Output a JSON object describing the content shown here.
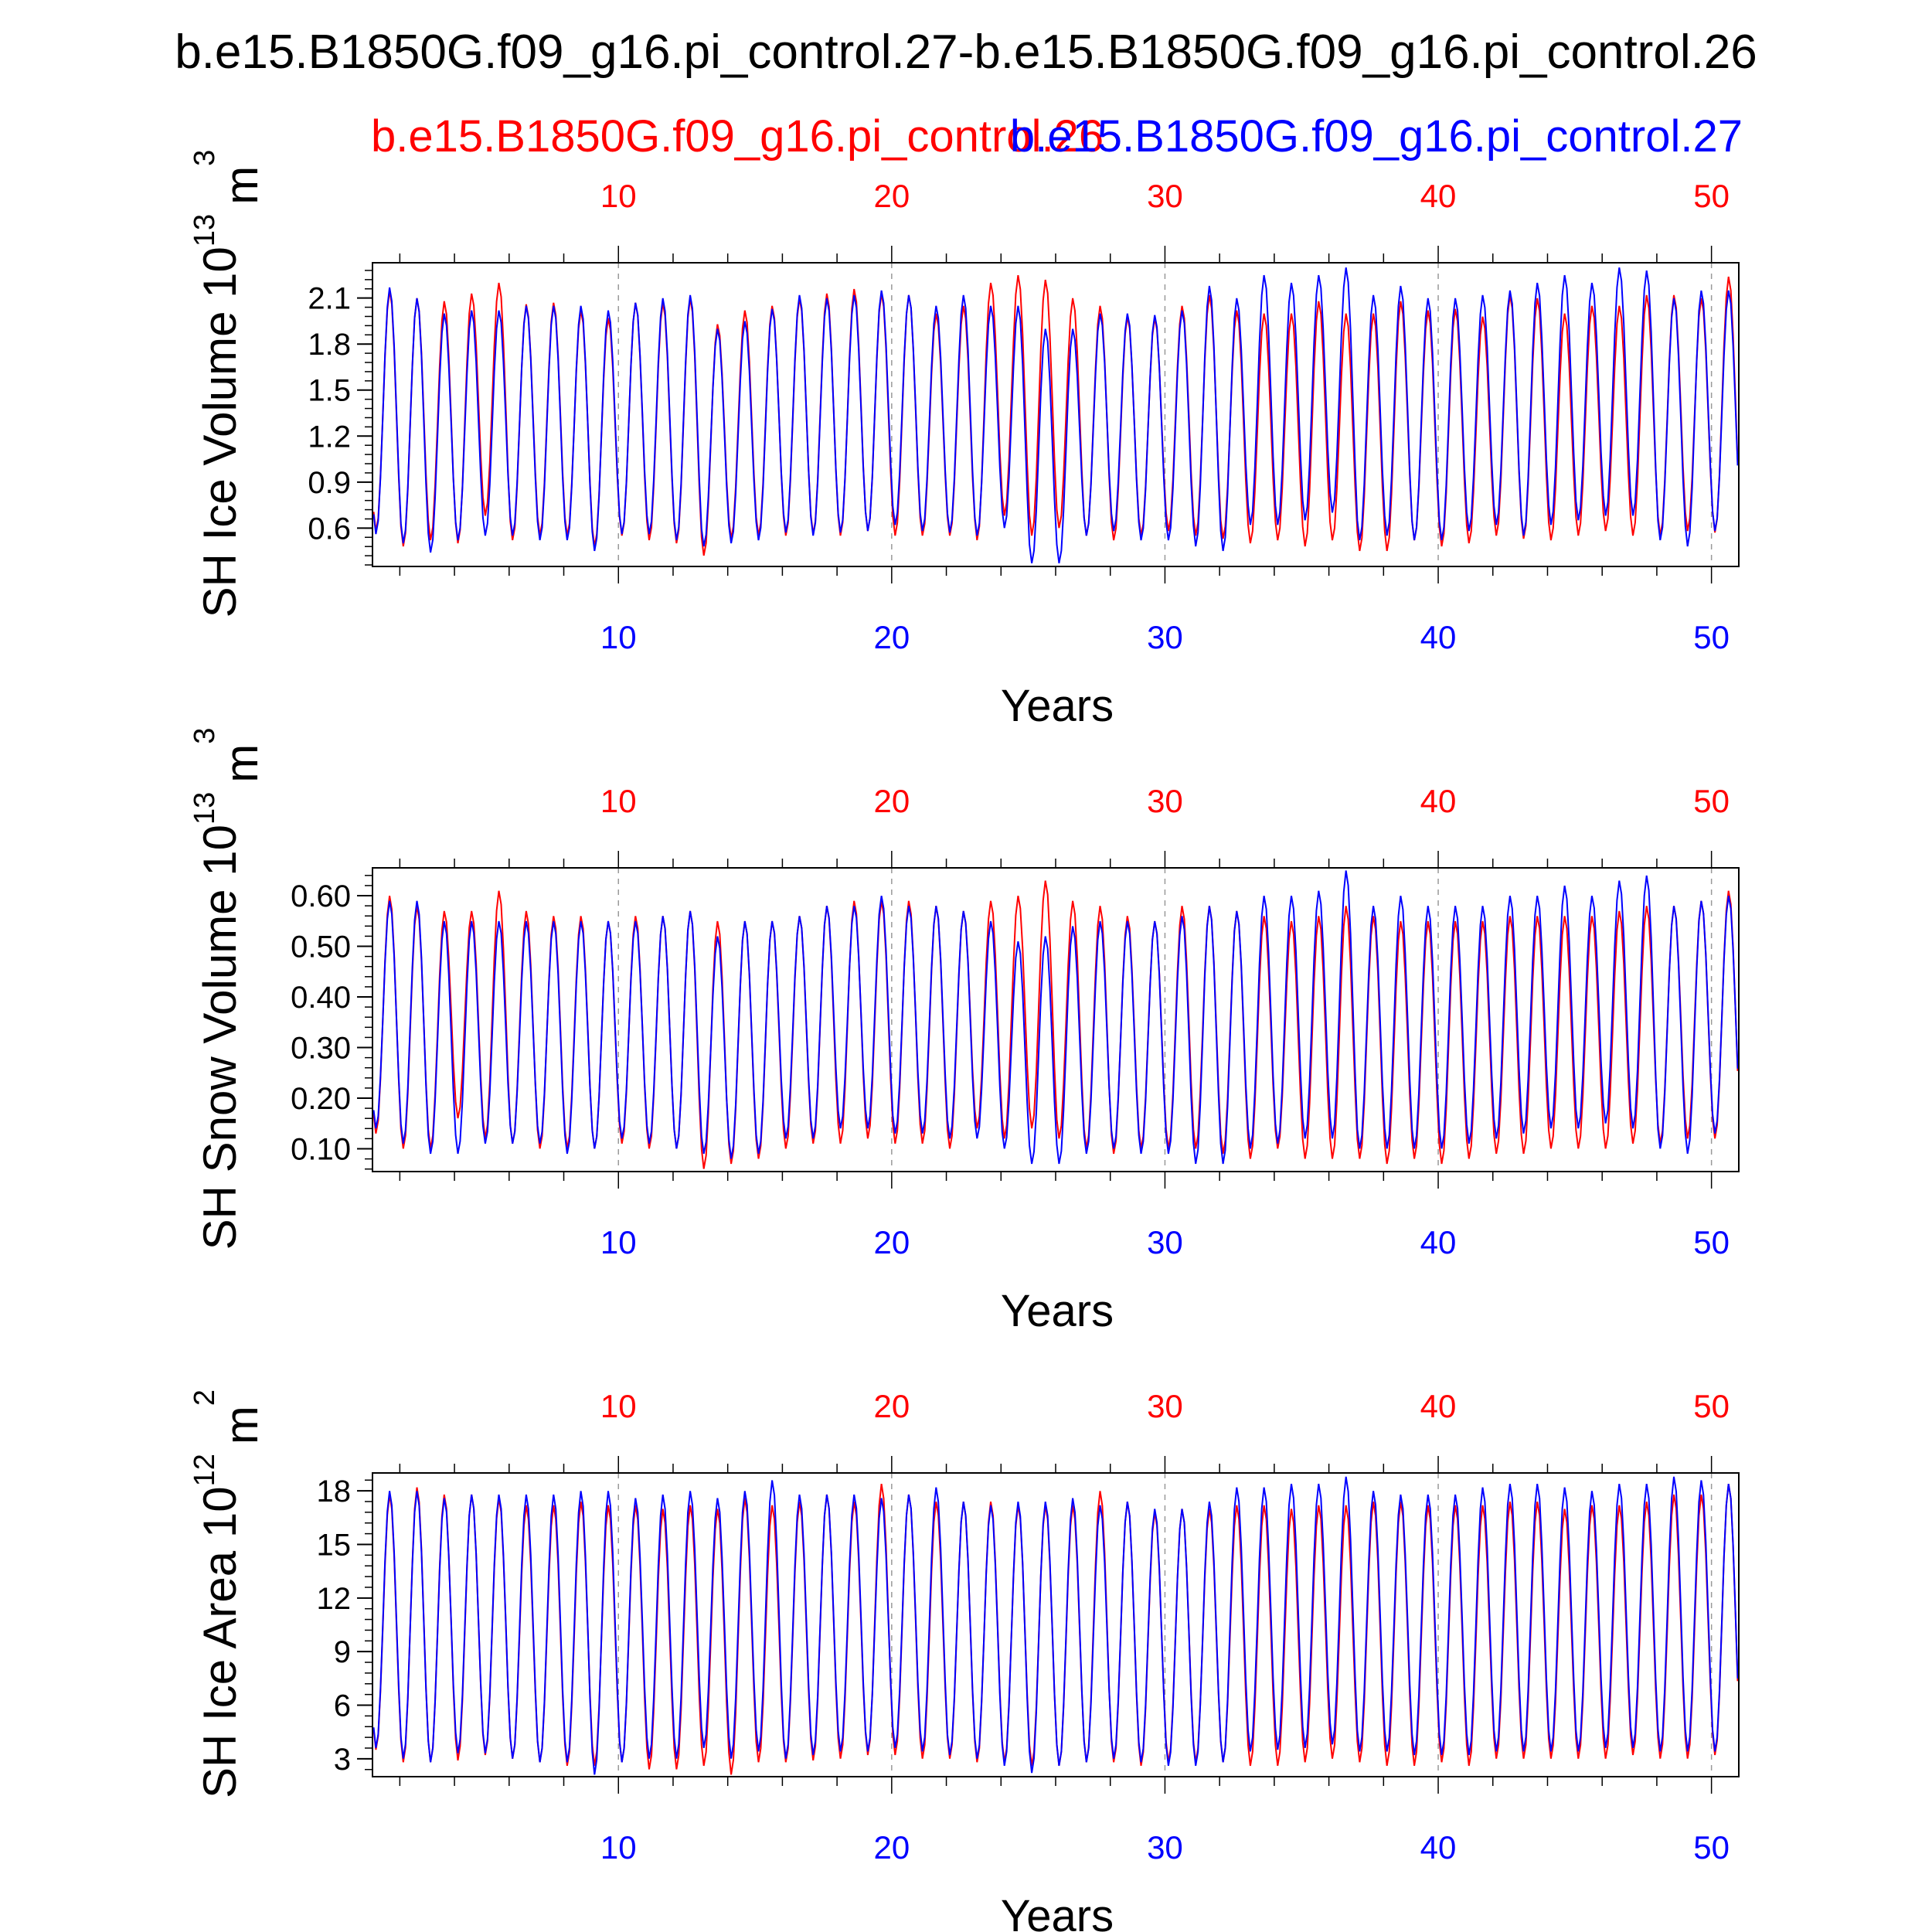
{
  "figure": {
    "title": "b.e15.B1850G.f09_g16.pi_control.27-b.e15.B1850G.f09_g16.pi_control.26",
    "legend": {
      "case_red": "b.e15.B1850G.f09_g16.pi_control.26",
      "case_blue": "b.e15.B1850G.f09_g16.pi_control.27"
    }
  },
  "colors": {
    "red": "#ff0000",
    "blue": "#0000ff",
    "axis": "#000000",
    "grid": "#999999"
  },
  "chart_data": [
    {
      "type": "line",
      "title": "",
      "xlabel": "Years",
      "ylabel": "SH Ice Volume 10",
      "ylabel_exponent": "13",
      "ylabel_unit": "m",
      "ylabel_unit_power": "3",
      "xlim": [
        1,
        51
      ],
      "ylim": [
        0.35,
        2.33
      ],
      "yticks": [
        0.6,
        0.9,
        1.2,
        1.5,
        1.8,
        2.1
      ],
      "ytick_labels": [
        "0.6",
        "0.9",
        "1.2",
        "1.5",
        "1.8",
        "2.1"
      ],
      "xticks": [
        10,
        20,
        30,
        40,
        50
      ],
      "xtick_labels": [
        "10",
        "20",
        "30",
        "40",
        "50"
      ],
      "grid": "vertical dashed at labeled x ticks",
      "series": [
        {
          "name": "b.e15.B1850G.f09_g16.pi_control.26",
          "color": "#ff0000",
          "annual_max": [
            2.15,
            2.1,
            2.08,
            2.13,
            2.2,
            2.06,
            2.07,
            2.02,
            1.97,
            2.07,
            2.07,
            2.1,
            1.93,
            2.02,
            2.05,
            2.1,
            2.13,
            2.16,
            2.13,
            2.12,
            2.0,
            2.05,
            2.2,
            2.25,
            2.22,
            2.1,
            2.05,
            1.98,
            1.97,
            2.05,
            2.12,
            2.02,
            2.0,
            2.0,
            2.08,
            2.0,
            2.0,
            2.08,
            2.02,
            2.03,
            1.98,
            2.12,
            2.1,
            2.0,
            2.05,
            2.05,
            2.12,
            2.12,
            2.1,
            2.24
          ],
          "annual_min": [
            0.58,
            0.48,
            0.52,
            0.5,
            0.68,
            0.52,
            0.55,
            0.55,
            0.48,
            0.55,
            0.52,
            0.5,
            0.42,
            0.53,
            0.55,
            0.55,
            0.56,
            0.55,
            0.58,
            0.55,
            0.55,
            0.55,
            0.52,
            0.68,
            0.55,
            0.6,
            0.55,
            0.52,
            0.55,
            0.58,
            0.55,
            0.53,
            0.5,
            0.52,
            0.48,
            0.52,
            0.45,
            0.45,
            0.52,
            0.48,
            0.5,
            0.55,
            0.53,
            0.52,
            0.55,
            0.58,
            0.55,
            0.55,
            0.58,
            0.57
          ]
        },
        {
          "name": "b.e15.B1850G.f09_g16.pi_control.27",
          "color": "#0000ff",
          "annual_max": [
            2.17,
            2.1,
            2.0,
            2.02,
            2.02,
            2.05,
            2.05,
            2.05,
            2.02,
            2.07,
            2.1,
            2.12,
            1.9,
            1.95,
            2.03,
            2.12,
            2.1,
            2.12,
            2.15,
            2.12,
            2.05,
            2.12,
            2.05,
            2.05,
            1.9,
            1.9,
            2.0,
            2.0,
            1.99,
            2.02,
            2.18,
            2.1,
            2.25,
            2.2,
            2.25,
            2.3,
            2.12,
            2.18,
            2.1,
            2.1,
            2.12,
            2.15,
            2.2,
            2.25,
            2.2,
            2.3,
            2.28,
            2.1,
            2.15,
            2.15
          ],
          "annual_min": [
            0.56,
            0.5,
            0.44,
            0.52,
            0.55,
            0.55,
            0.52,
            0.52,
            0.45,
            0.56,
            0.56,
            0.52,
            0.48,
            0.5,
            0.52,
            0.57,
            0.55,
            0.57,
            0.58,
            0.62,
            0.58,
            0.57,
            0.55,
            0.6,
            0.37,
            0.37,
            0.55,
            0.58,
            0.52,
            0.52,
            0.48,
            0.45,
            0.62,
            0.62,
            0.65,
            0.7,
            0.52,
            0.55,
            0.52,
            0.52,
            0.58,
            0.62,
            0.55,
            0.62,
            0.65,
            0.68,
            0.68,
            0.52,
            0.48,
            0.58
          ]
        }
      ]
    },
    {
      "type": "line",
      "title": "",
      "xlabel": "Years",
      "ylabel": "SH Snow Volume 10",
      "ylabel_exponent": "13",
      "ylabel_unit": "m",
      "ylabel_unit_power": "3",
      "xlim": [
        1,
        51
      ],
      "ylim": [
        0.055,
        0.655
      ],
      "yticks": [
        0.1,
        0.2,
        0.3,
        0.4,
        0.5,
        0.6
      ],
      "ytick_labels": [
        "0.10",
        "0.20",
        "0.30",
        "0.40",
        "0.50",
        "0.60"
      ],
      "xticks": [
        10,
        20,
        30,
        40,
        50
      ],
      "xtick_labels": [
        "10",
        "20",
        "30",
        "40",
        "50"
      ],
      "grid": "vertical dashed at labeled x ticks",
      "series": [
        {
          "name": "b.e15.B1850G.f09_g16.pi_control.26",
          "color": "#ff0000",
          "annual_max": [
            0.6,
            0.58,
            0.57,
            0.57,
            0.61,
            0.57,
            0.56,
            0.56,
            0.55,
            0.56,
            0.56,
            0.57,
            0.55,
            0.55,
            0.55,
            0.56,
            0.58,
            0.59,
            0.59,
            0.59,
            0.58,
            0.57,
            0.59,
            0.6,
            0.63,
            0.59,
            0.58,
            0.56,
            0.55,
            0.58,
            0.58,
            0.57,
            0.56,
            0.55,
            0.56,
            0.58,
            0.56,
            0.55,
            0.55,
            0.55,
            0.55,
            0.56,
            0.56,
            0.56,
            0.56,
            0.57,
            0.58,
            0.58,
            0.59,
            0.61
          ],
          "annual_min": [
            0.13,
            0.1,
            0.1,
            0.16,
            0.12,
            0.11,
            0.1,
            0.1,
            0.1,
            0.11,
            0.1,
            0.1,
            0.06,
            0.07,
            0.08,
            0.1,
            0.11,
            0.11,
            0.12,
            0.11,
            0.11,
            0.1,
            0.14,
            0.12,
            0.14,
            0.12,
            0.1,
            0.09,
            0.1,
            0.1,
            0.1,
            0.09,
            0.08,
            0.1,
            0.08,
            0.08,
            0.08,
            0.07,
            0.08,
            0.07,
            0.08,
            0.09,
            0.09,
            0.1,
            0.1,
            0.1,
            0.11,
            0.11,
            0.12,
            0.12
          ]
        },
        {
          "name": "b.e15.B1850G.f09_g16.pi_control.27",
          "color": "#0000ff",
          "annual_max": [
            0.59,
            0.59,
            0.55,
            0.55,
            0.55,
            0.55,
            0.55,
            0.55,
            0.55,
            0.55,
            0.56,
            0.57,
            0.52,
            0.55,
            0.55,
            0.56,
            0.58,
            0.58,
            0.6,
            0.58,
            0.58,
            0.57,
            0.55,
            0.51,
            0.52,
            0.54,
            0.55,
            0.55,
            0.55,
            0.56,
            0.58,
            0.57,
            0.6,
            0.6,
            0.61,
            0.65,
            0.58,
            0.6,
            0.58,
            0.58,
            0.58,
            0.6,
            0.6,
            0.62,
            0.6,
            0.63,
            0.64,
            0.58,
            0.59,
            0.6
          ],
          "annual_min": [
            0.14,
            0.11,
            0.09,
            0.09,
            0.11,
            0.11,
            0.11,
            0.09,
            0.1,
            0.12,
            0.11,
            0.1,
            0.09,
            0.08,
            0.09,
            0.12,
            0.12,
            0.14,
            0.14,
            0.13,
            0.13,
            0.12,
            0.12,
            0.1,
            0.07,
            0.07,
            0.09,
            0.1,
            0.09,
            0.09,
            0.07,
            0.07,
            0.1,
            0.11,
            0.12,
            0.12,
            0.1,
            0.1,
            0.1,
            0.1,
            0.11,
            0.12,
            0.13,
            0.14,
            0.14,
            0.15,
            0.14,
            0.1,
            0.09,
            0.13
          ]
        }
      ]
    },
    {
      "type": "line",
      "title": "",
      "xlabel": "Years",
      "ylabel": "SH Ice Area 10",
      "ylabel_exponent": "12",
      "ylabel_unit": "m",
      "ylabel_unit_power": "2",
      "xlim": [
        1,
        51
      ],
      "ylim": [
        2.0,
        19.0
      ],
      "yticks": [
        3,
        6,
        9,
        12,
        15,
        18
      ],
      "ytick_labels": [
        "3",
        "6",
        "9",
        "12",
        "15",
        "18"
      ],
      "xticks": [
        10,
        20,
        30,
        40,
        50
      ],
      "xtick_labels": [
        "10",
        "20",
        "30",
        "40",
        "50"
      ],
      "grid": "vertical dashed at labeled x ticks",
      "series": [
        {
          "name": "b.e15.B1850G.f09_g16.pi_control.26",
          "color": "#ff0000",
          "annual_max": [
            17.8,
            18.2,
            17.8,
            17.8,
            17.6,
            17.2,
            17.2,
            17.4,
            17.2,
            17.2,
            17.0,
            17.2,
            17.0,
            17.6,
            17.2,
            17.4,
            17.8,
            17.4,
            18.4,
            17.8,
            17.4,
            17.4,
            17.4,
            17.2,
            17.2,
            17.2,
            18.0,
            17.4,
            16.8,
            17.0,
            17.0,
            17.2,
            17.2,
            17.0,
            17.2,
            17.2,
            17.4,
            17.4,
            17.2,
            17.2,
            17.2,
            17.4,
            17.4,
            17.0,
            17.2,
            17.2,
            17.4,
            17.8,
            17.8,
            18.4
          ],
          "annual_min": [
            3.5,
            2.8,
            2.8,
            2.9,
            3.2,
            3.0,
            2.8,
            2.6,
            2.6,
            2.8,
            2.4,
            2.4,
            2.6,
            2.1,
            2.8,
            2.8,
            2.9,
            3.0,
            3.2,
            3.2,
            3.0,
            3.0,
            2.8,
            2.8,
            2.6,
            2.6,
            2.8,
            2.8,
            2.6,
            2.8,
            2.8,
            2.8,
            2.6,
            2.6,
            2.8,
            3.0,
            2.8,
            2.6,
            2.6,
            2.8,
            2.6,
            3.0,
            3.0,
            3.0,
            3.0,
            3.0,
            3.2,
            3.0,
            3.0,
            3.2
          ]
        },
        {
          "name": "b.e15.B1850G.f09_g16.pi_control.27",
          "color": "#0000ff",
          "annual_max": [
            18.0,
            18.0,
            17.6,
            17.8,
            17.8,
            17.8,
            17.8,
            18.0,
            18.0,
            17.6,
            17.8,
            18.0,
            17.6,
            18.0,
            18.6,
            17.8,
            17.8,
            17.8,
            17.6,
            17.8,
            18.2,
            17.4,
            17.2,
            17.4,
            17.4,
            17.6,
            17.2,
            17.4,
            17.0,
            17.0,
            17.4,
            18.2,
            18.2,
            18.4,
            18.4,
            18.8,
            18.0,
            17.8,
            17.8,
            17.8,
            18.2,
            18.4,
            18.4,
            18.2,
            18.0,
            18.4,
            18.4,
            18.8,
            18.6,
            18.4
          ],
          "annual_min": [
            3.6,
            3.0,
            2.8,
            3.3,
            3.3,
            3.0,
            2.8,
            2.8,
            2.1,
            2.8,
            3.0,
            3.0,
            3.6,
            3.0,
            3.4,
            3.0,
            3.2,
            3.4,
            3.4,
            3.6,
            3.4,
            3.2,
            3.0,
            2.6,
            2.2,
            2.6,
            2.8,
            3.0,
            2.8,
            2.6,
            2.6,
            2.8,
            3.4,
            3.5,
            3.6,
            3.8,
            3.4,
            3.4,
            3.2,
            3.2,
            3.2,
            3.4,
            3.4,
            3.4,
            3.4,
            3.6,
            3.6,
            3.4,
            3.4,
            3.4
          ]
        }
      ]
    }
  ]
}
